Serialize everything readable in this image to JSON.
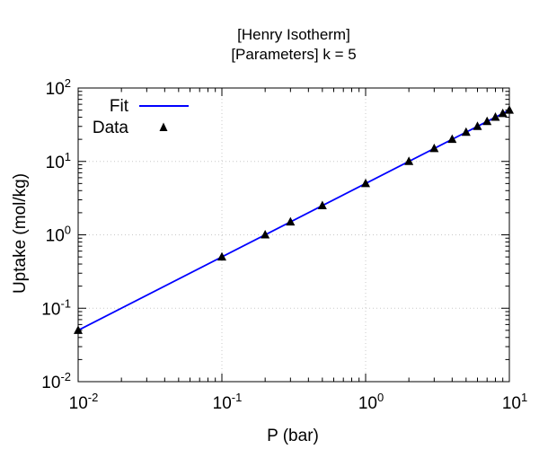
{
  "chart_data": {
    "type": "line",
    "title_lines": [
      "[Henry Isotherm]",
      "[Parameters] k = 5"
    ],
    "xlabel": "P (bar)",
    "ylabel": "Uptake (mol/kg)",
    "x_scale": "log",
    "y_scale": "log",
    "xlim": [
      0.01,
      10
    ],
    "ylim": [
      0.01,
      100
    ],
    "grid": true,
    "legend_position": "top-left",
    "x_ticks": [
      {
        "value": 0.01,
        "base": "10",
        "exp": "-2"
      },
      {
        "value": 0.1,
        "base": "10",
        "exp": "-1"
      },
      {
        "value": 1,
        "base": "10",
        "exp": "0"
      },
      {
        "value": 10,
        "base": "10",
        "exp": "1"
      }
    ],
    "y_ticks": [
      {
        "value": 0.01,
        "base": "10",
        "exp": "-2"
      },
      {
        "value": 0.1,
        "base": "10",
        "exp": "-1"
      },
      {
        "value": 1,
        "base": "10",
        "exp": "0"
      },
      {
        "value": 10,
        "base": "10",
        "exp": "1"
      },
      {
        "value": 100,
        "base": "10",
        "exp": "2"
      }
    ],
    "series": [
      {
        "name": "Fit",
        "kind": "line",
        "color": "#0000ff",
        "x": [
          0.01,
          10
        ],
        "y": [
          0.05,
          50
        ]
      },
      {
        "name": "Data",
        "kind": "markers",
        "marker": "triangle",
        "color": "#000000",
        "x": [
          0.01,
          0.1,
          0.2,
          0.3,
          0.5,
          1,
          2,
          3,
          4,
          5,
          6,
          7,
          8,
          9,
          10
        ],
        "y": [
          0.05,
          0.5,
          1,
          1.5,
          2.5,
          5,
          10,
          15,
          20,
          25,
          30,
          35,
          40,
          45,
          50
        ]
      }
    ]
  }
}
